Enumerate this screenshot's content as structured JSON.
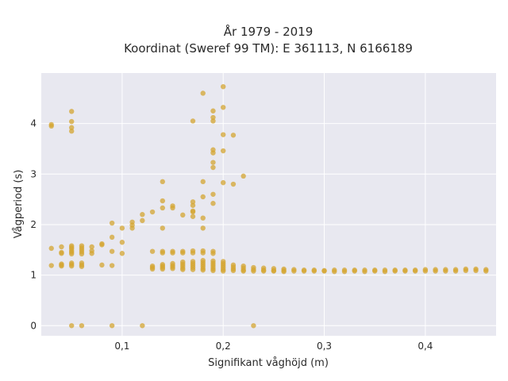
{
  "chart_data": {
    "type": "scatter",
    "title": [
      "År 1979 - 2019",
      "Koordinat (Sweref 99 TM): E 361113, N 6166189"
    ],
    "xlabel": "Signifikant våghöjd (m)",
    "ylabel": "Vågperiod (s)",
    "xlim": [
      0.02,
      0.47
    ],
    "ylim": [
      -0.2,
      5.0
    ],
    "xticks": [
      0.1,
      0.2,
      0.3,
      0.4
    ],
    "xtick_labels": [
      "0,1",
      "0,2",
      "0,3",
      "0,4"
    ],
    "yticks": [
      0,
      1,
      2,
      3,
      4
    ],
    "ytick_labels": [
      "0",
      "1",
      "2",
      "3",
      "4"
    ],
    "grid": true,
    "marker_color": "#d4a531",
    "plot_bg": "#e8e8f0",
    "grid_color": "#ffffff",
    "points": [
      {
        "x": 0.03,
        "y": 3.95
      },
      {
        "x": 0.03,
        "y": 3.98
      },
      {
        "x": 0.03,
        "y": 1.53
      },
      {
        "x": 0.03,
        "y": 1.19
      },
      {
        "x": 0.04,
        "y": 1.56
      },
      {
        "x": 0.04,
        "y": 1.45
      },
      {
        "x": 0.04,
        "y": 1.43
      },
      {
        "x": 0.04,
        "y": 1.22
      },
      {
        "x": 0.04,
        "y": 1.2
      },
      {
        "x": 0.04,
        "y": 1.18
      },
      {
        "x": 0.05,
        "y": 4.24
      },
      {
        "x": 0.05,
        "y": 4.04
      },
      {
        "x": 0.05,
        "y": 3.92
      },
      {
        "x": 0.05,
        "y": 3.85
      },
      {
        "x": 0.05,
        "y": 1.58
      },
      {
        "x": 0.05,
        "y": 1.55
      },
      {
        "x": 0.05,
        "y": 1.52
      },
      {
        "x": 0.05,
        "y": 1.48
      },
      {
        "x": 0.05,
        "y": 1.45
      },
      {
        "x": 0.05,
        "y": 1.42
      },
      {
        "x": 0.05,
        "y": 1.24
      },
      {
        "x": 0.05,
        "y": 1.21
      },
      {
        "x": 0.05,
        "y": 1.18
      },
      {
        "x": 0.05,
        "y": 0.0
      },
      {
        "x": 0.06,
        "y": 1.58
      },
      {
        "x": 0.06,
        "y": 1.54
      },
      {
        "x": 0.06,
        "y": 1.5
      },
      {
        "x": 0.06,
        "y": 1.46
      },
      {
        "x": 0.06,
        "y": 1.42
      },
      {
        "x": 0.06,
        "y": 1.24
      },
      {
        "x": 0.06,
        "y": 1.2
      },
      {
        "x": 0.06,
        "y": 1.17
      },
      {
        "x": 0.06,
        "y": 0.0
      },
      {
        "x": 0.07,
        "y": 1.56
      },
      {
        "x": 0.07,
        "y": 1.48
      },
      {
        "x": 0.07,
        "y": 1.43
      },
      {
        "x": 0.08,
        "y": 1.62
      },
      {
        "x": 0.08,
        "y": 1.6
      },
      {
        "x": 0.08,
        "y": 1.2
      },
      {
        "x": 0.09,
        "y": 2.03
      },
      {
        "x": 0.09,
        "y": 1.75
      },
      {
        "x": 0.09,
        "y": 1.47
      },
      {
        "x": 0.09,
        "y": 1.19
      },
      {
        "x": 0.09,
        "y": 0.0
      },
      {
        "x": 0.1,
        "y": 1.93
      },
      {
        "x": 0.1,
        "y": 1.65
      },
      {
        "x": 0.1,
        "y": 1.43
      },
      {
        "x": 0.11,
        "y": 2.05
      },
      {
        "x": 0.11,
        "y": 1.99
      },
      {
        "x": 0.11,
        "y": 1.93
      },
      {
        "x": 0.12,
        "y": 2.2
      },
      {
        "x": 0.12,
        "y": 2.08
      },
      {
        "x": 0.12,
        "y": 0.0
      },
      {
        "x": 0.13,
        "y": 2.25
      },
      {
        "x": 0.13,
        "y": 1.47
      },
      {
        "x": 0.13,
        "y": 1.18
      },
      {
        "x": 0.13,
        "y": 1.15
      },
      {
        "x": 0.13,
        "y": 1.12
      },
      {
        "x": 0.14,
        "y": 2.85
      },
      {
        "x": 0.14,
        "y": 2.47
      },
      {
        "x": 0.14,
        "y": 2.33
      },
      {
        "x": 0.14,
        "y": 1.93
      },
      {
        "x": 0.14,
        "y": 1.47
      },
      {
        "x": 0.14,
        "y": 1.44
      },
      {
        "x": 0.14,
        "y": 1.21
      },
      {
        "x": 0.14,
        "y": 1.18
      },
      {
        "x": 0.14,
        "y": 1.15
      },
      {
        "x": 0.14,
        "y": 1.12
      },
      {
        "x": 0.15,
        "y": 2.37
      },
      {
        "x": 0.15,
        "y": 2.33
      },
      {
        "x": 0.15,
        "y": 1.47
      },
      {
        "x": 0.15,
        "y": 1.44
      },
      {
        "x": 0.15,
        "y": 1.23
      },
      {
        "x": 0.15,
        "y": 1.19
      },
      {
        "x": 0.15,
        "y": 1.16
      },
      {
        "x": 0.15,
        "y": 1.13
      },
      {
        "x": 0.16,
        "y": 2.19
      },
      {
        "x": 0.16,
        "y": 1.47
      },
      {
        "x": 0.16,
        "y": 1.44
      },
      {
        "x": 0.16,
        "y": 1.26
      },
      {
        "x": 0.16,
        "y": 1.22
      },
      {
        "x": 0.16,
        "y": 1.18
      },
      {
        "x": 0.16,
        "y": 1.14
      },
      {
        "x": 0.16,
        "y": 1.11
      },
      {
        "x": 0.17,
        "y": 4.05
      },
      {
        "x": 0.17,
        "y": 2.45
      },
      {
        "x": 0.17,
        "y": 2.38
      },
      {
        "x": 0.17,
        "y": 2.27
      },
      {
        "x": 0.17,
        "y": 2.25
      },
      {
        "x": 0.17,
        "y": 2.16
      },
      {
        "x": 0.17,
        "y": 1.48
      },
      {
        "x": 0.17,
        "y": 1.44
      },
      {
        "x": 0.17,
        "y": 1.27
      },
      {
        "x": 0.17,
        "y": 1.23
      },
      {
        "x": 0.17,
        "y": 1.19
      },
      {
        "x": 0.17,
        "y": 1.15
      },
      {
        "x": 0.17,
        "y": 1.11
      },
      {
        "x": 0.18,
        "y": 4.6
      },
      {
        "x": 0.18,
        "y": 2.85
      },
      {
        "x": 0.18,
        "y": 2.55
      },
      {
        "x": 0.18,
        "y": 2.13
      },
      {
        "x": 0.18,
        "y": 1.93
      },
      {
        "x": 0.18,
        "y": 1.48
      },
      {
        "x": 0.18,
        "y": 1.44
      },
      {
        "x": 0.18,
        "y": 1.29
      },
      {
        "x": 0.18,
        "y": 1.25
      },
      {
        "x": 0.18,
        "y": 1.21
      },
      {
        "x": 0.18,
        "y": 1.17
      },
      {
        "x": 0.18,
        "y": 1.13
      },
      {
        "x": 0.18,
        "y": 1.1
      },
      {
        "x": 0.19,
        "y": 4.25
      },
      {
        "x": 0.19,
        "y": 4.12
      },
      {
        "x": 0.19,
        "y": 4.05
      },
      {
        "x": 0.19,
        "y": 3.48
      },
      {
        "x": 0.19,
        "y": 3.42
      },
      {
        "x": 0.19,
        "y": 3.23
      },
      {
        "x": 0.19,
        "y": 3.13
      },
      {
        "x": 0.19,
        "y": 2.6
      },
      {
        "x": 0.19,
        "y": 2.42
      },
      {
        "x": 0.19,
        "y": 1.47
      },
      {
        "x": 0.19,
        "y": 1.43
      },
      {
        "x": 0.19,
        "y": 1.28
      },
      {
        "x": 0.19,
        "y": 1.24
      },
      {
        "x": 0.19,
        "y": 1.2
      },
      {
        "x": 0.19,
        "y": 1.16
      },
      {
        "x": 0.19,
        "y": 1.12
      },
      {
        "x": 0.19,
        "y": 1.09
      },
      {
        "x": 0.2,
        "y": 4.73
      },
      {
        "x": 0.2,
        "y": 4.32
      },
      {
        "x": 0.2,
        "y": 3.78
      },
      {
        "x": 0.2,
        "y": 3.46
      },
      {
        "x": 0.2,
        "y": 2.83
      },
      {
        "x": 0.2,
        "y": 1.27
      },
      {
        "x": 0.2,
        "y": 1.23
      },
      {
        "x": 0.2,
        "y": 1.19
      },
      {
        "x": 0.2,
        "y": 1.15
      },
      {
        "x": 0.2,
        "y": 1.11
      },
      {
        "x": 0.2,
        "y": 1.08
      },
      {
        "x": 0.21,
        "y": 3.77
      },
      {
        "x": 0.21,
        "y": 2.8
      },
      {
        "x": 0.21,
        "y": 1.2
      },
      {
        "x": 0.21,
        "y": 1.16
      },
      {
        "x": 0.21,
        "y": 1.12
      },
      {
        "x": 0.21,
        "y": 1.09
      },
      {
        "x": 0.22,
        "y": 2.96
      },
      {
        "x": 0.22,
        "y": 1.18
      },
      {
        "x": 0.22,
        "y": 1.14
      },
      {
        "x": 0.22,
        "y": 1.1
      },
      {
        "x": 0.22,
        "y": 1.08
      },
      {
        "x": 0.23,
        "y": 1.15
      },
      {
        "x": 0.23,
        "y": 1.11
      },
      {
        "x": 0.23,
        "y": 1.08
      },
      {
        "x": 0.23,
        "y": 0.0
      },
      {
        "x": 0.24,
        "y": 1.14
      },
      {
        "x": 0.24,
        "y": 1.1
      },
      {
        "x": 0.24,
        "y": 1.08
      },
      {
        "x": 0.25,
        "y": 1.13
      },
      {
        "x": 0.25,
        "y": 1.09
      },
      {
        "x": 0.25,
        "y": 1.08
      },
      {
        "x": 0.26,
        "y": 1.12
      },
      {
        "x": 0.26,
        "y": 1.09
      },
      {
        "x": 0.26,
        "y": 1.07
      },
      {
        "x": 0.27,
        "y": 1.11
      },
      {
        "x": 0.27,
        "y": 1.08
      },
      {
        "x": 0.28,
        "y": 1.1
      },
      {
        "x": 0.28,
        "y": 1.08
      },
      {
        "x": 0.29,
        "y": 1.1
      },
      {
        "x": 0.29,
        "y": 1.08
      },
      {
        "x": 0.3,
        "y": 1.09
      },
      {
        "x": 0.3,
        "y": 1.08
      },
      {
        "x": 0.31,
        "y": 1.1
      },
      {
        "x": 0.31,
        "y": 1.07
      },
      {
        "x": 0.32,
        "y": 1.1
      },
      {
        "x": 0.32,
        "y": 1.07
      },
      {
        "x": 0.33,
        "y": 1.1
      },
      {
        "x": 0.33,
        "y": 1.08
      },
      {
        "x": 0.34,
        "y": 1.1
      },
      {
        "x": 0.34,
        "y": 1.07
      },
      {
        "x": 0.35,
        "y": 1.1
      },
      {
        "x": 0.35,
        "y": 1.08
      },
      {
        "x": 0.36,
        "y": 1.1
      },
      {
        "x": 0.36,
        "y": 1.07
      },
      {
        "x": 0.37,
        "y": 1.1
      },
      {
        "x": 0.37,
        "y": 1.08
      },
      {
        "x": 0.38,
        "y": 1.1
      },
      {
        "x": 0.38,
        "y": 1.08
      },
      {
        "x": 0.39,
        "y": 1.1
      },
      {
        "x": 0.39,
        "y": 1.08
      },
      {
        "x": 0.4,
        "y": 1.11
      },
      {
        "x": 0.4,
        "y": 1.08
      },
      {
        "x": 0.41,
        "y": 1.11
      },
      {
        "x": 0.41,
        "y": 1.08
      },
      {
        "x": 0.42,
        "y": 1.11
      },
      {
        "x": 0.42,
        "y": 1.08
      },
      {
        "x": 0.43,
        "y": 1.11
      },
      {
        "x": 0.43,
        "y": 1.08
      },
      {
        "x": 0.44,
        "y": 1.12
      },
      {
        "x": 0.44,
        "y": 1.09
      },
      {
        "x": 0.45,
        "y": 1.12
      },
      {
        "x": 0.45,
        "y": 1.09
      },
      {
        "x": 0.46,
        "y": 1.11
      },
      {
        "x": 0.46,
        "y": 1.08
      }
    ]
  }
}
